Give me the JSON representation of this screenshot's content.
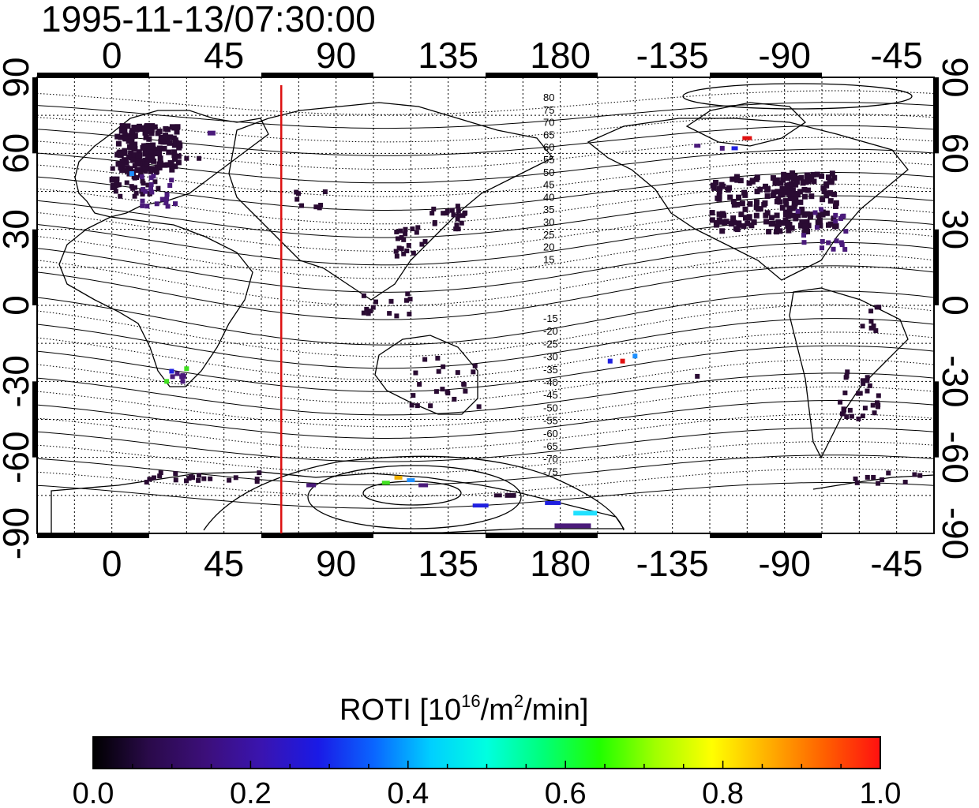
{
  "timestamp": "1995-11-13/07:30:00",
  "lon_ticks": [
    "0",
    "45",
    "90",
    "135",
    "180",
    "-135",
    "-90",
    "-45"
  ],
  "lat_ticks": [
    "90",
    "60",
    "30",
    "0",
    "-30",
    "-60",
    "-90"
  ],
  "mag_lat_labels_north": [
    "80",
    "75",
    "70",
    "65",
    "60",
    "55",
    "50",
    "45",
    "40",
    "35",
    "30",
    "25",
    "20",
    "15"
  ],
  "mag_lat_labels_south": [
    "-15",
    "-20",
    "-25",
    "-30",
    "-35",
    "-40",
    "-45",
    "-50",
    "-55",
    "-60",
    "-65",
    "-70",
    "-75"
  ],
  "colorbar": {
    "title_prefix": "ROTI  [10",
    "title_sup1": "16",
    "title_mid": "/m",
    "title_sup2": "2",
    "title_suffix": "/min]",
    "tick_labels": [
      "0.0",
      "0.2",
      "0.4",
      "0.6",
      "0.8",
      "1.0"
    ],
    "colors": [
      "#000000",
      "#2a0a4a",
      "#3c0f7a",
      "#3a14b0",
      "#1a1ae6",
      "#0a66ff",
      "#00cfff",
      "#00ffe0",
      "#00ff7a",
      "#20ff00",
      "#a0ff00",
      "#ffff00",
      "#ffb000",
      "#ff6000",
      "#ff1010"
    ]
  },
  "terminator_longitude": 68,
  "point_colors": {
    "dark": "#2a0b33",
    "purple": "#4a1a7a",
    "blue": "#2020e0",
    "lightblue": "#1e90ff",
    "cyan": "#20e0ff",
    "green": "#40e020",
    "orange": "#f0b000",
    "red": "#e01010"
  }
}
